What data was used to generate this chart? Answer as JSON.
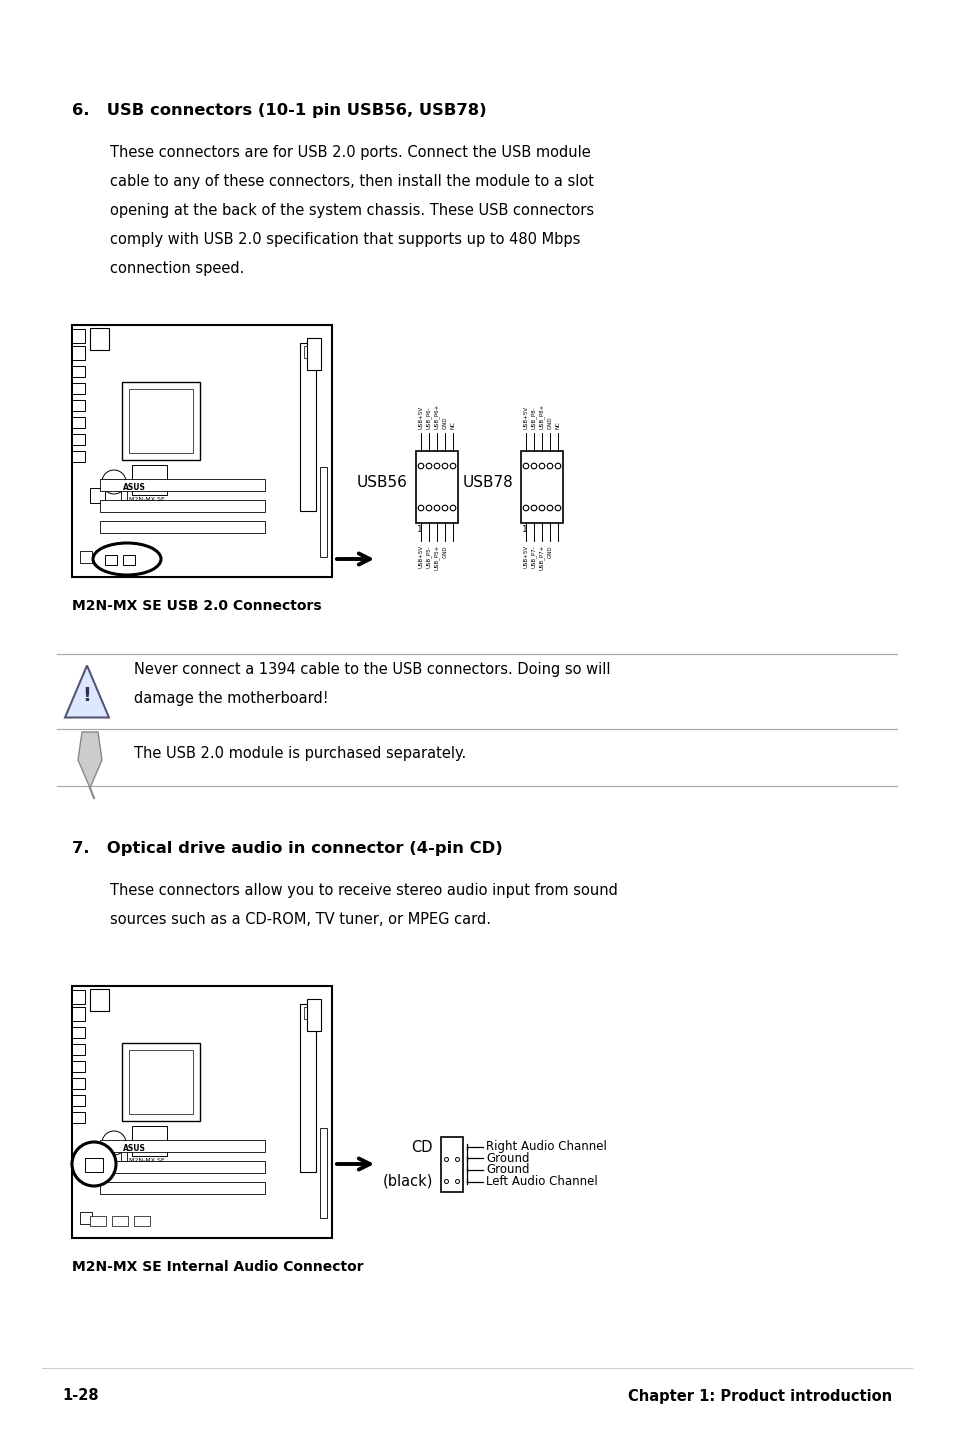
{
  "bg_color": "#ffffff",
  "page_width": 9.54,
  "page_height": 14.38,
  "text_color": "#000000",
  "section6_heading": "6.   USB connectors (10-1 pin USB56, USB78)",
  "section6_body_lines": [
    "These connectors are for USB 2.0 ports. Connect the USB module",
    "cable to any of these connectors, then install the module to a slot",
    "opening at the back of the system chassis. These USB connectors",
    "comply with USB 2.0 specification that supports up to 480 Mbps",
    "connection speed."
  ],
  "caption1": "M2N-MX SE USB 2.0 Connectors",
  "warning_text_lines": [
    "Never connect a 1394 cable to the USB connectors. Doing so will",
    "damage the motherboard!"
  ],
  "note_text": "The USB 2.0 module is purchased separately.",
  "section7_heading": "7.   Optical drive audio in connector (4-pin CD)",
  "section7_body_lines": [
    "These connectors allow you to receive stereo audio input from sound",
    "sources such as a CD-ROM, TV tuner, or MPEG card."
  ],
  "caption2": "M2N-MX SE Internal Audio Connector",
  "cd_label_top": "CD",
  "cd_label_bot": "(black)",
  "pin_labels": [
    "Right Audio Channel",
    "Ground",
    "Ground",
    "Left Audio Channel"
  ],
  "usb56_top_labels": [
    "USB+5V",
    "USB_P6-",
    "USB_P6+",
    "GND",
    "NC"
  ],
  "usb56_bot_labels": [
    "USB+5V",
    "USB_P5-",
    "USB_P5+",
    "GND"
  ],
  "usb78_top_labels": [
    "USB+5V",
    "USB_P8-",
    "USB_P8+",
    "GND",
    "NC"
  ],
  "usb78_bot_labels": [
    "USB+5V",
    "USB_P7-",
    "USB_P7+",
    "GND"
  ],
  "footer_left": "1-28",
  "footer_right": "Chapter 1: Product introduction"
}
